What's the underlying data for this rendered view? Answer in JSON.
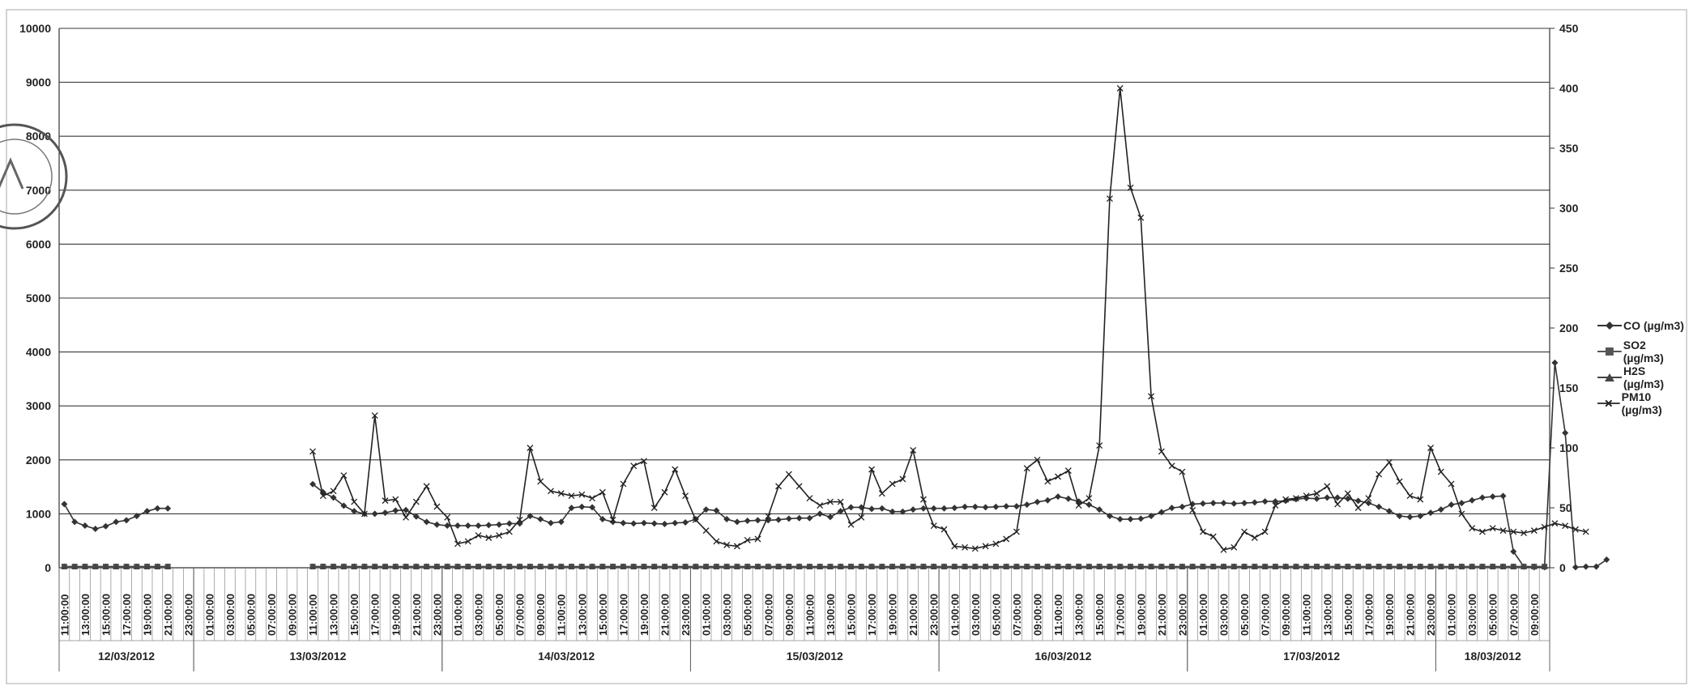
{
  "chart_data": {
    "type": "line",
    "title": "",
    "xlabel": "",
    "ylabel": "",
    "ylim": [
      0,
      10000
    ],
    "y2lim": [
      0,
      450
    ],
    "yticks": [
      0,
      1000,
      2000,
      3000,
      4000,
      5000,
      6000,
      7000,
      8000,
      9000,
      10000
    ],
    "y2ticks": [
      0,
      50,
      100,
      150,
      200,
      250,
      300,
      350,
      400,
      450
    ],
    "x_start_hour": 11,
    "x_count": 144,
    "hour_step_labels": [
      "11:00:00",
      "13:00:00",
      "15:00:00",
      "17:00:00",
      "19:00:00",
      "21:00:00",
      "23:00:00",
      "01:00:00",
      "03:00:00",
      "05:00:00",
      "07:00:00",
      "09:00:00"
    ],
    "day_groups": [
      {
        "label": "12/03/2012",
        "start": 0,
        "end": 13
      },
      {
        "label": "13/03/2012",
        "start": 13,
        "end": 37
      },
      {
        "label": "14/03/2012",
        "start": 37,
        "end": 61
      },
      {
        "label": "15/03/2012",
        "start": 61,
        "end": 85
      },
      {
        "label": "16/03/2012",
        "start": 85,
        "end": 109
      },
      {
        "label": "17/03/2012",
        "start": 109,
        "end": 133
      },
      {
        "label": "18/03/2012",
        "start": 133,
        "end": 144
      }
    ],
    "legend_position": "right",
    "grid": true,
    "series": [
      {
        "name": "CO (µg/m3)",
        "axis": "left",
        "marker": "diamond",
        "color": "#333333",
        "segments": [
          {
            "start": 0,
            "values": [
              1180,
              850,
              780,
              720,
              770,
              850,
              880,
              960,
              1050,
              1100,
              1100
            ]
          },
          {
            "start": 24,
            "values": [
              1550,
              1400,
              1300,
              1150,
              1050,
              1000,
              1000,
              1020,
              1060,
              1070,
              950,
              850,
              800,
              780,
              780,
              780,
              780,
              790,
              800,
              820,
              820,
              960,
              900,
              830,
              850,
              1110,
              1130,
              1120,
              900,
              850,
              830,
              820,
              830,
              820,
              810,
              830,
              840,
              900,
              1080,
              1060,
              900,
              850,
              870,
              880,
              880,
              890,
              910,
              920,
              920,
              1000,
              940,
              1050,
              1120,
              1120,
              1090,
              1100,
              1040,
              1040,
              1080,
              1100,
              1100,
              1100,
              1110,
              1130,
              1130,
              1120,
              1130,
              1140,
              1140,
              1170,
              1220,
              1250,
              1320,
              1280,
              1230,
              1170,
              1080,
              960,
              900,
              900,
              910,
              960,
              1030,
              1110,
              1130,
              1180,
              1190,
              1200,
              1200,
              1190,
              1200,
              1210,
              1230,
              1230,
              1240,
              1270,
              1290,
              1280,
              1300,
              1300,
              1280,
              1240,
              1200,
              1130,
              1050,
              960,
              940,
              960,
              1020,
              1080,
              1170,
              1200,
              1250,
              1300,
              1320,
              1330,
              300,
              20,
              10,
              10,
              3800,
              2500,
              10,
              20,
              20,
              150
            ]
          }
        ]
      },
      {
        "name": "SO2 (µg/m3)",
        "axis": "right",
        "marker": "square",
        "color": "#555555",
        "segments": [
          {
            "start": 0,
            "values": [
              1,
              1,
              1,
              1,
              1,
              1,
              1,
              1,
              1,
              1,
              1
            ]
          },
          {
            "start": 24,
            "values": [
              1,
              1,
              1,
              1,
              1,
              1,
              1,
              1,
              1,
              1,
              1,
              1,
              1,
              1,
              1,
              1,
              1,
              1,
              1,
              1,
              1,
              1,
              1,
              1,
              1,
              1,
              1,
              1,
              1,
              1,
              1,
              1,
              1,
              1,
              1,
              1,
              1,
              1,
              1,
              1,
              1,
              1,
              1,
              1,
              1,
              1,
              1,
              1,
              1,
              1,
              1,
              1,
              1,
              1,
              1,
              1,
              1,
              1,
              1,
              1,
              1,
              1,
              1,
              1,
              1,
              1,
              1,
              1,
              1,
              1,
              1,
              1,
              1,
              1,
              1,
              1,
              1,
              1,
              1,
              1,
              1,
              1,
              1,
              1,
              1,
              1,
              1,
              1,
              1,
              1,
              1,
              1,
              1,
              1,
              1,
              1,
              1,
              1,
              1,
              1,
              1,
              1,
              1,
              1,
              1,
              1,
              1,
              1,
              1,
              1,
              1,
              1,
              1,
              1,
              1,
              1,
              1,
              1,
              1,
              1
            ]
          }
        ]
      },
      {
        "name": "H2S (µg/m3)",
        "axis": "right",
        "marker": "triangle",
        "color": "#444444",
        "segments": [
          {
            "start": 0,
            "values": [
              1,
              1,
              1,
              1,
              1,
              1,
              1,
              1,
              1,
              1,
              1
            ]
          },
          {
            "start": 24,
            "values": [
              1,
              1,
              1,
              1,
              1,
              1,
              1,
              1,
              1,
              1,
              1,
              1,
              1,
              1,
              1,
              1,
              1,
              1,
              1,
              1,
              1,
              1,
              1,
              1,
              1,
              1,
              1,
              1,
              1,
              1,
              1,
              1,
              1,
              1,
              1,
              1,
              1,
              1,
              1,
              1,
              1,
              1,
              1,
              1,
              1,
              1,
              1,
              1,
              1,
              1,
              1,
              1,
              1,
              1,
              1,
              1,
              1,
              1,
              1,
              1,
              1,
              1,
              1,
              1,
              1,
              1,
              1,
              1,
              1,
              1,
              1,
              1,
              1,
              1,
              1,
              1,
              1,
              1,
              1,
              1,
              1,
              1,
              1,
              1,
              1,
              1,
              1,
              1,
              1,
              1,
              1,
              1,
              1,
              1,
              1,
              1,
              1,
              1,
              1,
              1,
              1,
              1,
              1,
              1,
              1,
              1,
              1,
              1,
              1,
              1,
              1,
              1,
              1,
              1,
              1,
              1,
              1,
              1,
              1,
              1
            ]
          }
        ]
      },
      {
        "name": "PM10 (µg/m3)",
        "axis": "right",
        "marker": "cross",
        "color": "#222222",
        "segments": [
          {
            "start": 24,
            "values": [
              97,
              60,
              64,
              77,
              55,
              45,
              127,
              56,
              57,
              42,
              55,
              68,
              51,
              42,
              20,
              22,
              27,
              25,
              27,
              30,
              40,
              100,
              72,
              64,
              62,
              60,
              61,
              58,
              63,
              40,
              70,
              85,
              89,
              50,
              63,
              82,
              60,
              40,
              31,
              22,
              19,
              18,
              23,
              24,
              43,
              68,
              78,
              68,
              58,
              52,
              55,
              55,
              36,
              42,
              82,
              62,
              70,
              74,
              98,
              57,
              35,
              32,
              18,
              17,
              16,
              18,
              20,
              24,
              30,
              83,
              90,
              72,
              76,
              81,
              52,
              58,
              102,
              308,
              400,
              317,
              292,
              143,
              97,
              85,
              80,
              48,
              30,
              26,
              15,
              17,
              30,
              25,
              30,
              52,
              57,
              58,
              60,
              62,
              68,
              53,
              62,
              50,
              58,
              78,
              88,
              72,
              60,
              57,
              100,
              80,
              70,
              45,
              33,
              30,
              33,
              31,
              30,
              29,
              31,
              34,
              37,
              35,
              32,
              30
            ]
          }
        ]
      }
    ]
  }
}
